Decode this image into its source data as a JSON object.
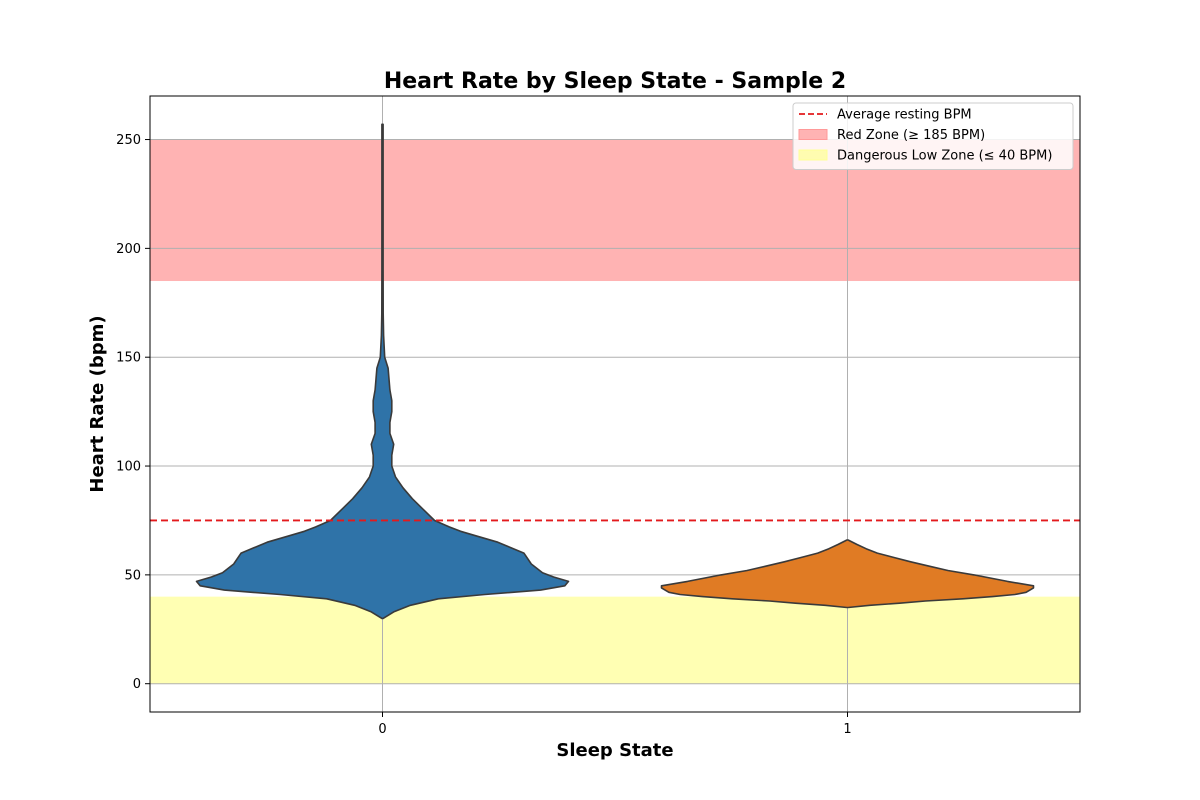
{
  "chart_data": {
    "type": "violin",
    "title": "Heart Rate by Sleep State - Sample 2",
    "xlabel": "Sleep State",
    "ylabel": "Heart Rate (bpm)",
    "categories": [
      "0",
      "1"
    ],
    "ylim": [
      -13,
      270
    ],
    "yticks": [
      0,
      50,
      100,
      150,
      200,
      250
    ],
    "grid": true,
    "legend_position": "top-right",
    "legend": [
      {
        "label": "Average resting BPM",
        "kind": "dashed-line",
        "color": "#e31a1c"
      },
      {
        "label": "Red Zone (≥ 185 BPM)",
        "kind": "patch",
        "color": "#ff9999"
      },
      {
        "label": "Dangerous Low Zone (≤ 40 BPM)",
        "kind": "patch",
        "color": "#ffff99"
      }
    ],
    "reference_lines": [
      {
        "name": "Average resting BPM",
        "y": 75,
        "color": "#e31a1c",
        "style": "dashed"
      }
    ],
    "bands": [
      {
        "name": "Red Zone (≥ 185 BPM)",
        "y0": 185,
        "y1": 250,
        "color": "#ff9999"
      },
      {
        "name": "Dangerous Low Zone (≤ 40 BPM)",
        "y0": 0,
        "y1": 40,
        "color": "#ffff99"
      }
    ],
    "series": [
      {
        "category": "0",
        "color": "#2f73a8",
        "min": 30,
        "max": 257,
        "density": [
          [
            30,
            0.0
          ],
          [
            33,
            0.06
          ],
          [
            36,
            0.15
          ],
          [
            39,
            0.3
          ],
          [
            41,
            0.55
          ],
          [
            43,
            0.85
          ],
          [
            45,
            0.98
          ],
          [
            47,
            1.0
          ],
          [
            49,
            0.92
          ],
          [
            51,
            0.86
          ],
          [
            55,
            0.8
          ],
          [
            60,
            0.76
          ],
          [
            65,
            0.62
          ],
          [
            68,
            0.5
          ],
          [
            70,
            0.42
          ],
          [
            72,
            0.36
          ],
          [
            75,
            0.28
          ],
          [
            80,
            0.22
          ],
          [
            85,
            0.16
          ],
          [
            90,
            0.11
          ],
          [
            95,
            0.07
          ],
          [
            100,
            0.05
          ],
          [
            105,
            0.05
          ],
          [
            110,
            0.06
          ],
          [
            115,
            0.04
          ],
          [
            120,
            0.04
          ],
          [
            125,
            0.05
          ],
          [
            130,
            0.05
          ],
          [
            135,
            0.04
          ],
          [
            140,
            0.035
          ],
          [
            145,
            0.03
          ],
          [
            150,
            0.012
          ],
          [
            160,
            0.006
          ],
          [
            170,
            0.004
          ],
          [
            190,
            0.003
          ],
          [
            210,
            0.003
          ],
          [
            230,
            0.003
          ],
          [
            257,
            0.0
          ]
        ]
      },
      {
        "category": "1",
        "color": "#e07b24",
        "min": 35,
        "max": 66,
        "density": [
          [
            35,
            0.0
          ],
          [
            36,
            0.12
          ],
          [
            37,
            0.28
          ],
          [
            38,
            0.42
          ],
          [
            39,
            0.62
          ],
          [
            40,
            0.78
          ],
          [
            41,
            0.9
          ],
          [
            42,
            0.96
          ],
          [
            44,
            1.0
          ],
          [
            45,
            1.0
          ],
          [
            47,
            0.86
          ],
          [
            50,
            0.68
          ],
          [
            52,
            0.54
          ],
          [
            54,
            0.44
          ],
          [
            56,
            0.34
          ],
          [
            58,
            0.25
          ],
          [
            60,
            0.16
          ],
          [
            62,
            0.1
          ],
          [
            64,
            0.05
          ],
          [
            66,
            0.0
          ]
        ]
      }
    ]
  }
}
